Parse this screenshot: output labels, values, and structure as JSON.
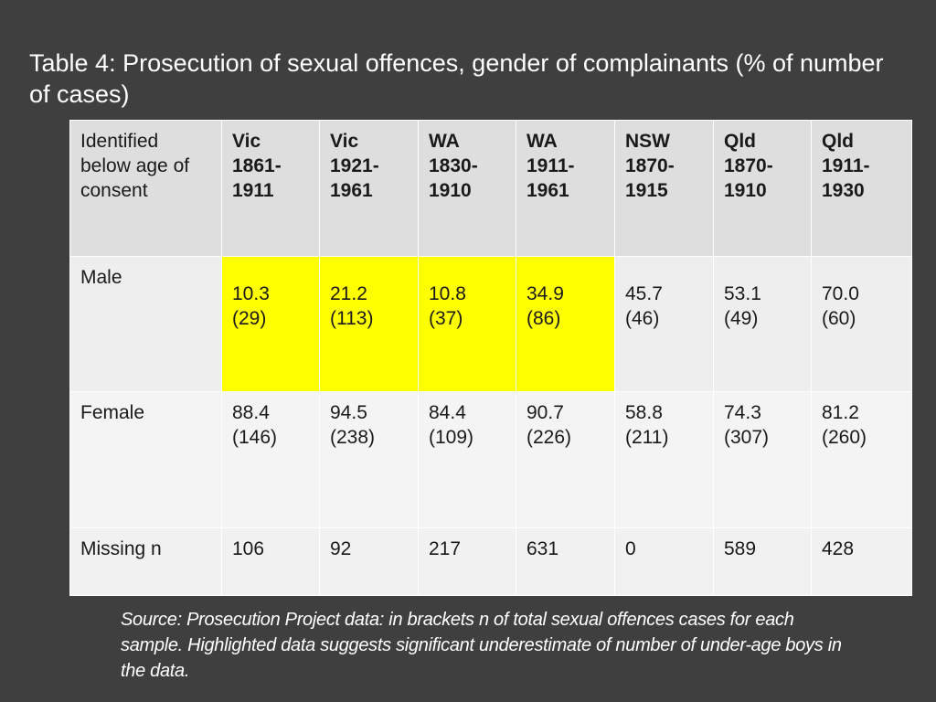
{
  "slide": {
    "title": "Table 4: Prosecution of sexual offences, gender of complainants (% of number of cases)",
    "source": "Source: Prosecution Project data: in brackets n of total sexual offences cases for each sample. Highlighted data suggests significant underestimate of number of under-age boys in the data."
  },
  "table": {
    "corner_header": "Identified below age of consent",
    "columns": [
      {
        "label": "Vic 1861-1911"
      },
      {
        "label": "Vic 1921-1961"
      },
      {
        "label": "WA 1830-1910"
      },
      {
        "label": "WA 1911-1961"
      },
      {
        "label": "NSW 1870-1915"
      },
      {
        "label": "Qld 1870-1910"
      },
      {
        "label": "Qld 1911-1930"
      }
    ],
    "rows": {
      "male": {
        "label": "Male",
        "cells": [
          {
            "value": "10.3",
            "count": "(29)"
          },
          {
            "value": "21.2",
            "count": "(113)"
          },
          {
            "value": "10.8",
            "count": "(37)"
          },
          {
            "value": "34.9",
            "count": "(86)"
          },
          {
            "value": "45.7",
            "count": "(46)"
          },
          {
            "value": "53.1",
            "count": "(49)"
          },
          {
            "value": "70.0",
            "count": "(60)"
          }
        ]
      },
      "female": {
        "label": "Female",
        "cells": [
          {
            "value": "88.4",
            "count": "(146)"
          },
          {
            "value": "94.5",
            "count": "(238)"
          },
          {
            "value": "84.4",
            "count": "(109)"
          },
          {
            "value": "90.7",
            "count": "(226)"
          },
          {
            "value": "58.8",
            "count": "(211)"
          },
          {
            "value": "74.3",
            "count": "(307)"
          },
          {
            "value": "81.2",
            "count": "(260)"
          }
        ]
      },
      "missing": {
        "label": "Missing n",
        "cells": [
          "106",
          "92",
          "217",
          "631",
          "0",
          "589",
          "428"
        ]
      }
    },
    "highlight_color": "#ffff00"
  }
}
